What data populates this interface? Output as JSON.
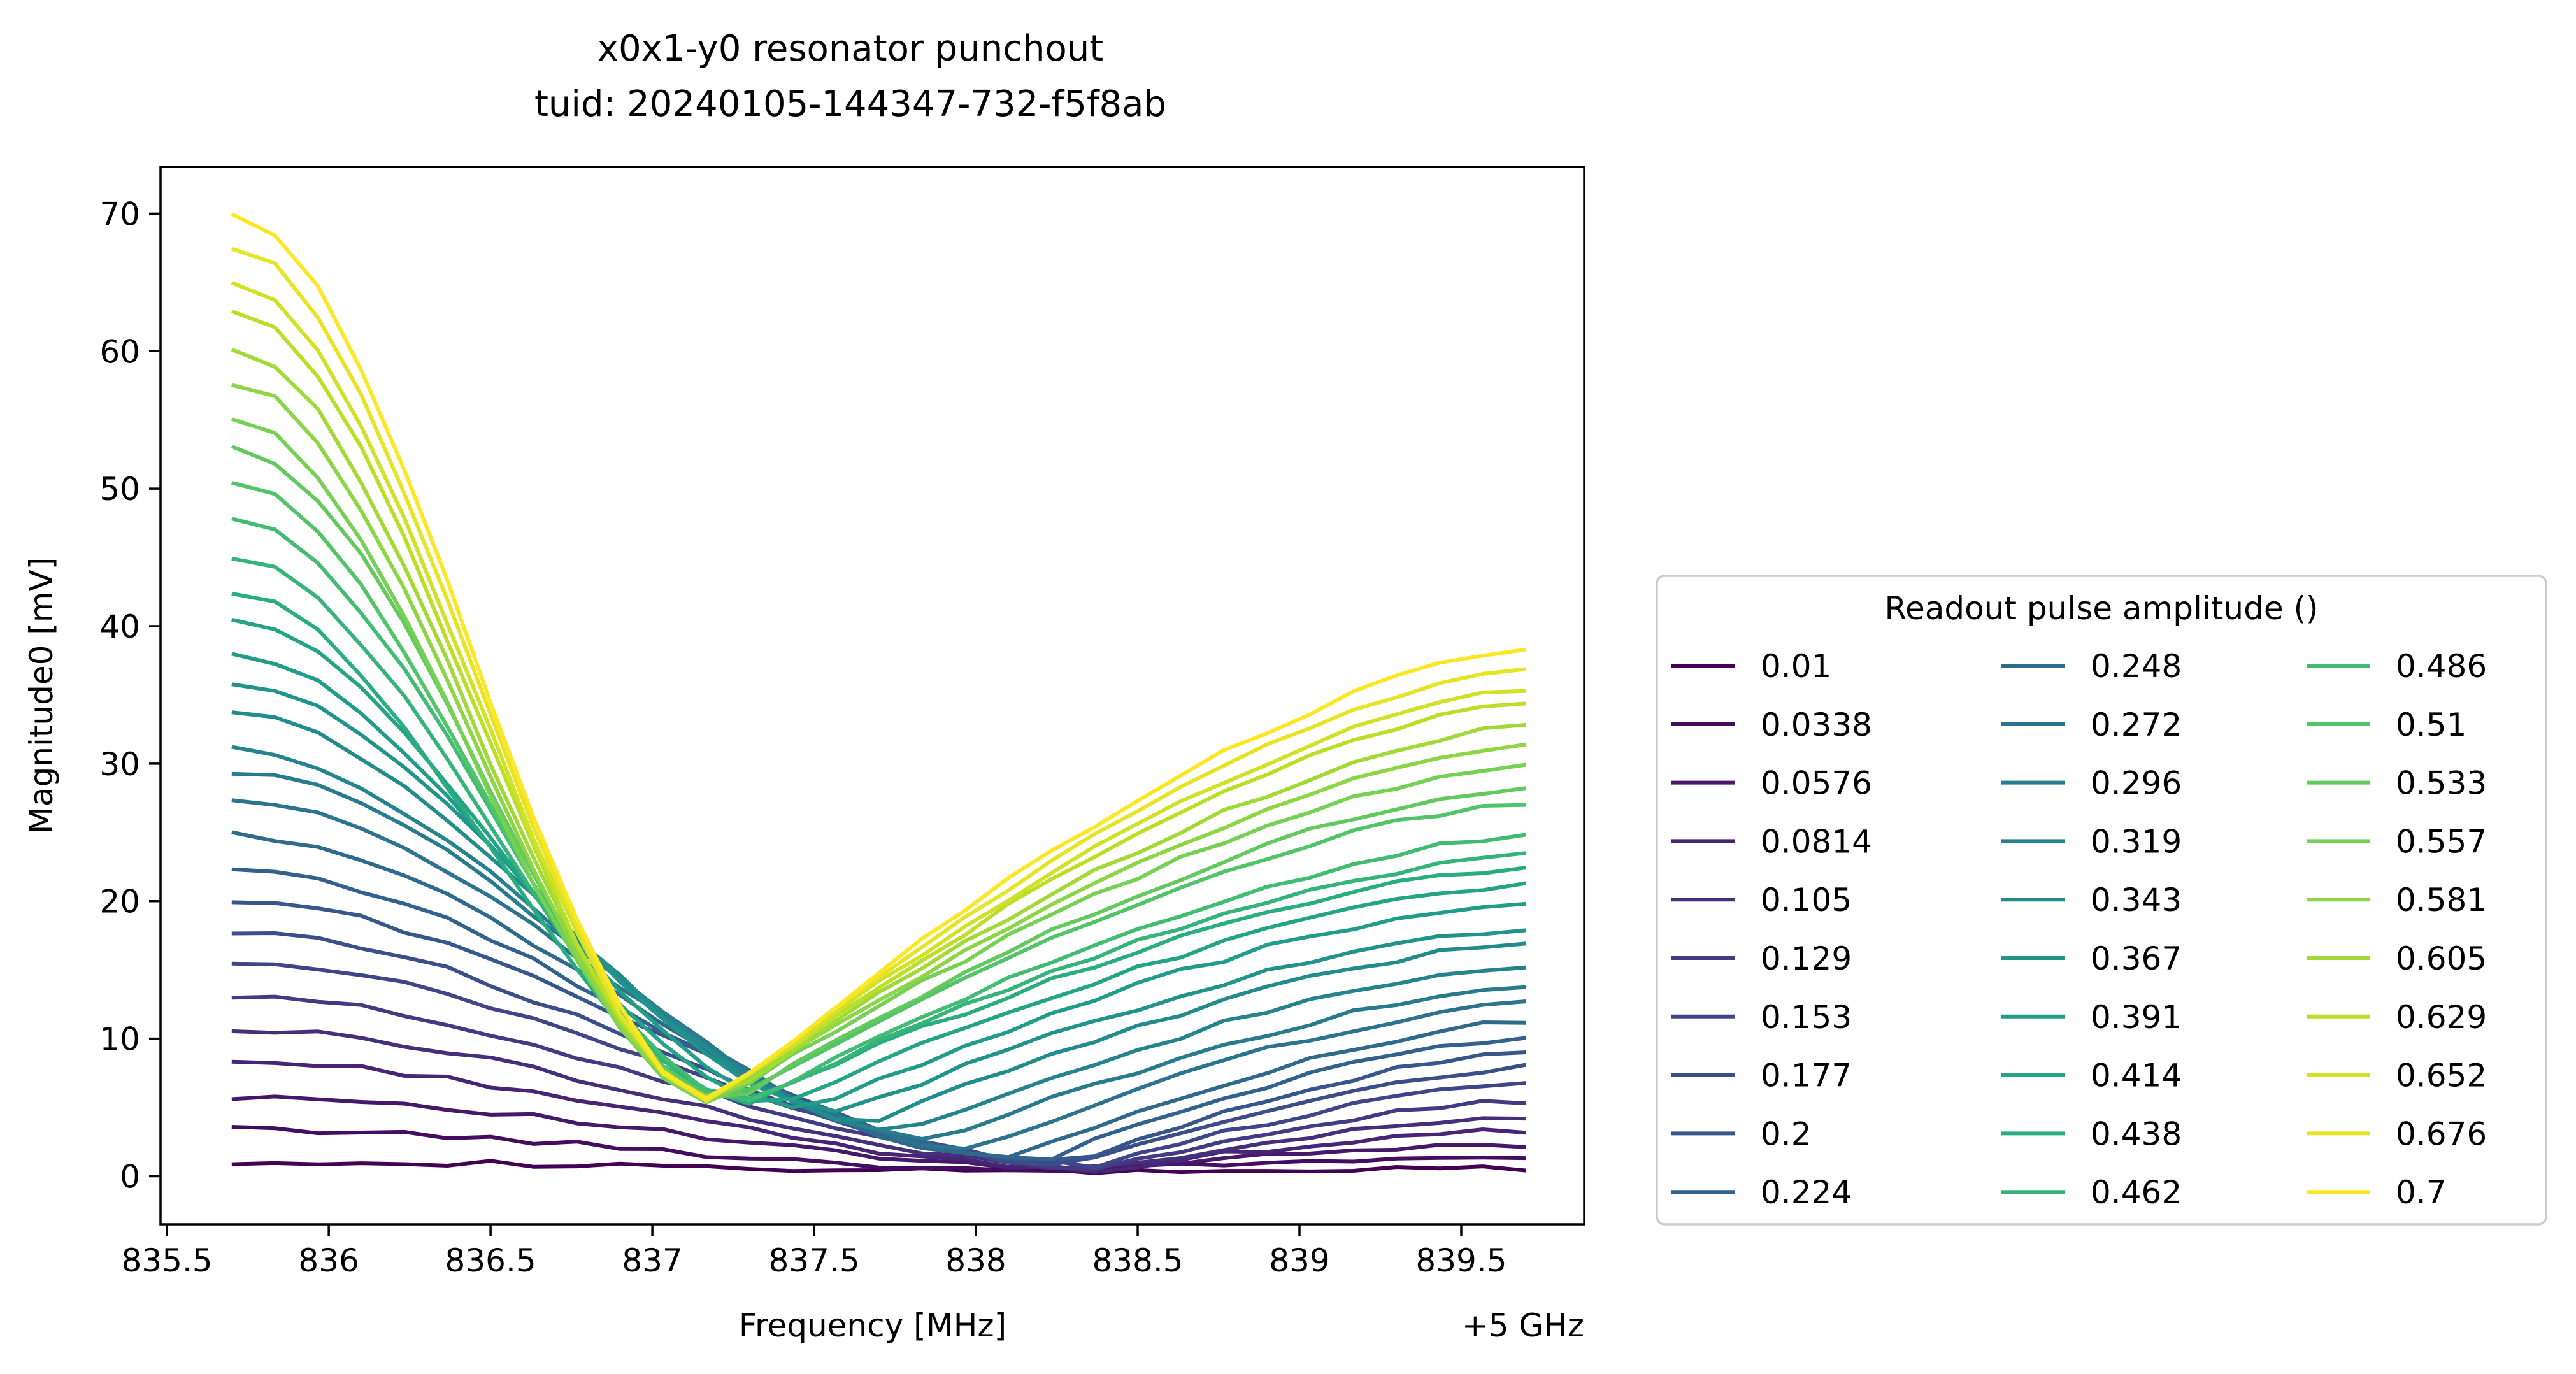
{
  "chart_data": {
    "type": "line",
    "title": "x0x1-y0 resonator punchout",
    "subtitle": "tuid: 20240105-144347-732-f5f8ab",
    "xlabel": "Frequency [MHz]",
    "ylabel": "Magnitude0 [mV]",
    "x_offset_label": "+5 GHz",
    "xlim": [
      835.48,
      839.88
    ],
    "ylim": [
      -3.5,
      73.4
    ],
    "x_ticks": [
      835.5,
      836,
      836.5,
      837,
      837.5,
      838,
      838.5,
      839,
      839.5
    ],
    "x_tick_labels": [
      "835.5",
      "836",
      "836.5",
      "837",
      "837.5",
      "838",
      "838.5",
      "839",
      "839.5"
    ],
    "y_ticks": [
      0,
      10,
      20,
      30,
      40,
      50,
      60,
      70
    ],
    "y_tick_labels": [
      "0",
      "10",
      "20",
      "30",
      "40",
      "50",
      "60",
      "70"
    ],
    "grid": false,
    "colormap": "viridis",
    "frequency_range": [
      835.7,
      839.7
    ],
    "points_per_sweep": 31,
    "legend": {
      "title": "Readout pulse amplitude ()",
      "placement": "lower-right-outside",
      "columns": 3,
      "entries": [
        "0.01",
        "0.0338",
        "0.0576",
        "0.0814",
        "0.105",
        "0.129",
        "0.153",
        "0.177",
        "0.2",
        "0.224",
        "0.248",
        "0.272",
        "0.296",
        "0.319",
        "0.343",
        "0.367",
        "0.391",
        "0.414",
        "0.438",
        "0.462",
        "0.486",
        "0.51",
        "0.533",
        "0.557",
        "0.581",
        "0.605",
        "0.629",
        "0.652",
        "0.676",
        "0.7"
      ]
    },
    "amplitudes": [
      0.01,
      0.0338,
      0.0576,
      0.0814,
      0.105,
      0.129,
      0.153,
      0.177,
      0.2,
      0.224,
      0.248,
      0.272,
      0.296,
      0.319,
      0.343,
      0.367,
      0.391,
      0.414,
      0.438,
      0.462,
      0.486,
      0.51,
      0.533,
      0.557,
      0.581,
      0.605,
      0.629,
      0.652,
      0.676,
      0.7
    ],
    "series_start_values": [
      1.1,
      3.4,
      5.8,
      8.3,
      10.6,
      13.0,
      15.4,
      17.8,
      20.0,
      22.3,
      24.8,
      27.2,
      29.4,
      31.0,
      33.6,
      35.8,
      37.8,
      40.5,
      42.3,
      45.0,
      47.7,
      50.4,
      53.0,
      55.1,
      57.7,
      60.2,
      62.9,
      65.2,
      67.6,
      70.0
    ],
    "series_end_values": [
      0.5,
      1.4,
      2.3,
      3.3,
      4.2,
      5.5,
      6.8,
      7.9,
      9.0,
      10.1,
      11.2,
      12.6,
      13.6,
      15.2,
      16.9,
      18.0,
      19.9,
      21.1,
      22.4,
      23.4,
      24.7,
      27.2,
      28.3,
      29.8,
      31.3,
      32.7,
      34.5,
      35.5,
      37.0,
      38.3
    ],
    "series_min_values": [
      0.3,
      0.4,
      0.5,
      0.5,
      0.6,
      0.7,
      0.8,
      0.9,
      1.0,
      1.1,
      1.3,
      2.0,
      2.7,
      3.3,
      4.0,
      4.6,
      5.0,
      5.3,
      5.4,
      5.5,
      5.5,
      5.5,
      5.5,
      5.5,
      5.5,
      5.5,
      5.5,
      5.5,
      5.5,
      5.5
    ],
    "series_min_frequencies": [
      838.2,
      838.3,
      838.4,
      838.4,
      838.4,
      838.4,
      838.4,
      838.3,
      838.3,
      838.2,
      838.1,
      838.0,
      837.9,
      837.8,
      837.7,
      837.6,
      837.5,
      837.4,
      837.3,
      837.3,
      837.3,
      837.25,
      837.25,
      837.2,
      837.2,
      837.2,
      837.2,
      837.2,
      837.2,
      837.2
    ]
  }
}
